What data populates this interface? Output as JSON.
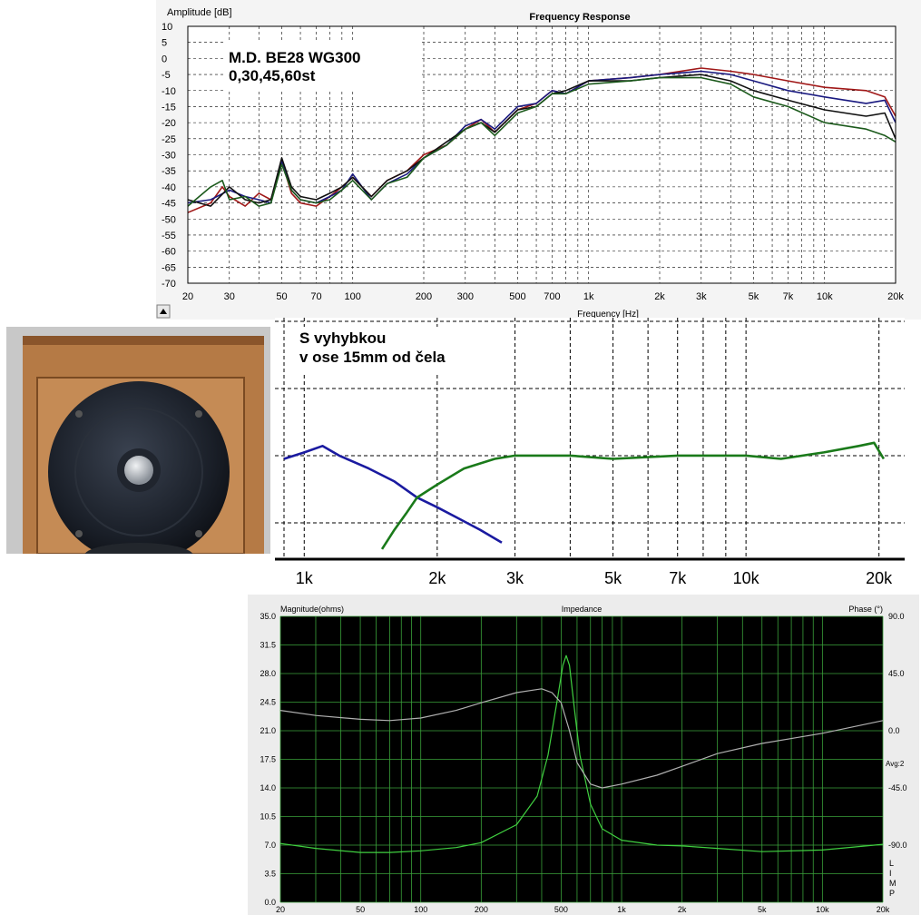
{
  "chart_data": [
    {
      "type": "line",
      "title": "Frequency Response",
      "xlabel": "Frequency [Hz]",
      "ylabel": "Amplitude [dB]",
      "xscale": "log",
      "xlim": [
        20,
        20000
      ],
      "ylim": [
        -70,
        10
      ],
      "yticks": [
        "10",
        "5",
        "0",
        "-5",
        "-10",
        "-15",
        "-20",
        "-25",
        "-30",
        "-35",
        "-40",
        "-45",
        "-50",
        "-55",
        "-60",
        "-65",
        "-70"
      ],
      "xticks": [
        {
          "v": 20,
          "label": "20"
        },
        {
          "v": 30,
          "label": "30"
        },
        {
          "v": 50,
          "label": "50"
        },
        {
          "v": 70,
          "label": "70"
        },
        {
          "v": 100,
          "label": "100"
        },
        {
          "v": 200,
          "label": "200"
        },
        {
          "v": 300,
          "label": "300"
        },
        {
          "v": 500,
          "label": "500"
        },
        {
          "v": 700,
          "label": "700"
        },
        {
          "v": 1000,
          "label": "1k"
        },
        {
          "v": 2000,
          "label": "2k"
        },
        {
          "v": 3000,
          "label": "3k"
        },
        {
          "v": 5000,
          "label": "5k"
        },
        {
          "v": 7000,
          "label": "7k"
        },
        {
          "v": 10000,
          "label": "10k"
        },
        {
          "v": 20000,
          "label": "20k"
        }
      ],
      "grid": true,
      "annotation": [
        "M.D. BE28 WG300",
        "0,30,45,60st"
      ],
      "series": [
        {
          "color": "#a01818",
          "points": [
            [
              20,
              -48
            ],
            [
              25,
              -45
            ],
            [
              28,
              -40
            ],
            [
              30,
              -43
            ],
            [
              35,
              -46
            ],
            [
              40,
              -42
            ],
            [
              45,
              -44
            ],
            [
              50,
              -32
            ],
            [
              55,
              -42
            ],
            [
              60,
              -45
            ],
            [
              70,
              -46
            ],
            [
              80,
              -43
            ],
            [
              90,
              -40
            ],
            [
              100,
              -37
            ],
            [
              120,
              -43
            ],
            [
              140,
              -38
            ],
            [
              170,
              -35
            ],
            [
              200,
              -30
            ],
            [
              250,
              -27
            ],
            [
              300,
              -22
            ],
            [
              350,
              -19
            ],
            [
              400,
              -23
            ],
            [
              500,
              -16
            ],
            [
              600,
              -14
            ],
            [
              700,
              -10
            ],
            [
              800,
              -11
            ],
            [
              1000,
              -7
            ],
            [
              1500,
              -6
            ],
            [
              2000,
              -5
            ],
            [
              3000,
              -3
            ],
            [
              4000,
              -4
            ],
            [
              5000,
              -5
            ],
            [
              7000,
              -7
            ],
            [
              10000,
              -9
            ],
            [
              15000,
              -10
            ],
            [
              18000,
              -12
            ],
            [
              20000,
              -18
            ]
          ]
        },
        {
          "color": "#1a1a80",
          "points": [
            [
              20,
              -45
            ],
            [
              25,
              -44
            ],
            [
              30,
              -41
            ],
            [
              35,
              -43
            ],
            [
              40,
              -44
            ],
            [
              45,
              -45
            ],
            [
              50,
              -32
            ],
            [
              55,
              -41
            ],
            [
              60,
              -44
            ],
            [
              70,
              -45
            ],
            [
              80,
              -43
            ],
            [
              90,
              -41
            ],
            [
              100,
              -36
            ],
            [
              120,
              -44
            ],
            [
              140,
              -39
            ],
            [
              170,
              -36
            ],
            [
              200,
              -31
            ],
            [
              250,
              -27
            ],
            [
              300,
              -21
            ],
            [
              350,
              -19
            ],
            [
              400,
              -22
            ],
            [
              500,
              -15
            ],
            [
              600,
              -14
            ],
            [
              700,
              -10
            ],
            [
              800,
              -11
            ],
            [
              1000,
              -7
            ],
            [
              1500,
              -6
            ],
            [
              2000,
              -5
            ],
            [
              3000,
              -4
            ],
            [
              4000,
              -5
            ],
            [
              5000,
              -7
            ],
            [
              7000,
              -10
            ],
            [
              10000,
              -12
            ],
            [
              15000,
              -14
            ],
            [
              18000,
              -13
            ],
            [
              20000,
              -20
            ]
          ]
        },
        {
          "color": "#101010",
          "points": [
            [
              20,
              -44
            ],
            [
              25,
              -46
            ],
            [
              30,
              -40
            ],
            [
              35,
              -44
            ],
            [
              40,
              -45
            ],
            [
              45,
              -44
            ],
            [
              50,
              -31
            ],
            [
              55,
              -40
            ],
            [
              60,
              -43
            ],
            [
              70,
              -44
            ],
            [
              80,
              -42
            ],
            [
              90,
              -40
            ],
            [
              100,
              -37
            ],
            [
              120,
              -43
            ],
            [
              140,
              -38
            ],
            [
              170,
              -35
            ],
            [
              200,
              -31
            ],
            [
              250,
              -26
            ],
            [
              300,
              -22
            ],
            [
              350,
              -20
            ],
            [
              400,
              -23
            ],
            [
              500,
              -16
            ],
            [
              600,
              -15
            ],
            [
              700,
              -11
            ],
            [
              800,
              -10
            ],
            [
              1000,
              -7
            ],
            [
              1500,
              -7
            ],
            [
              2000,
              -6
            ],
            [
              3000,
              -5
            ],
            [
              4000,
              -7
            ],
            [
              5000,
              -10
            ],
            [
              7000,
              -13
            ],
            [
              10000,
              -16
            ],
            [
              15000,
              -18
            ],
            [
              18000,
              -17
            ],
            [
              20000,
              -25
            ]
          ]
        },
        {
          "color": "#1c5a1c",
          "points": [
            [
              20,
              -46
            ],
            [
              25,
              -40
            ],
            [
              28,
              -38
            ],
            [
              30,
              -44
            ],
            [
              35,
              -43
            ],
            [
              40,
              -46
            ],
            [
              45,
              -45
            ],
            [
              50,
              -33
            ],
            [
              55,
              -41
            ],
            [
              60,
              -44
            ],
            [
              70,
              -45
            ],
            [
              80,
              -44
            ],
            [
              90,
              -41
            ],
            [
              100,
              -38
            ],
            [
              120,
              -44
            ],
            [
              140,
              -39
            ],
            [
              170,
              -37
            ],
            [
              200,
              -31
            ],
            [
              250,
              -27
            ],
            [
              300,
              -22
            ],
            [
              350,
              -20
            ],
            [
              400,
              -24
            ],
            [
              500,
              -17
            ],
            [
              600,
              -15
            ],
            [
              700,
              -11
            ],
            [
              800,
              -11
            ],
            [
              1000,
              -8
            ],
            [
              1500,
              -7
            ],
            [
              2000,
              -6
            ],
            [
              3000,
              -6
            ],
            [
              4000,
              -8
            ],
            [
              5000,
              -12
            ],
            [
              7000,
              -15
            ],
            [
              10000,
              -20
            ],
            [
              15000,
              -22
            ],
            [
              18000,
              -24
            ],
            [
              20000,
              -26
            ]
          ]
        }
      ]
    },
    {
      "type": "line",
      "xscale": "log",
      "xlim": [
        900,
        21000
      ],
      "xticks": [
        {
          "v": 1000,
          "label": "1k"
        },
        {
          "v": 2000,
          "label": "2k"
        },
        {
          "v": 3000,
          "label": "3k"
        },
        {
          "v": 5000,
          "label": "5k"
        },
        {
          "v": 7000,
          "label": "7k"
        },
        {
          "v": 10000,
          "label": "10k"
        },
        {
          "v": 20000,
          "label": "20k"
        }
      ],
      "grid": true,
      "annotation": [
        "S vyhybkou",
        "v ose 15mm od čela"
      ],
      "series": [
        {
          "color": "#1a1aa0",
          "points": [
            [
              900,
              -5
            ],
            [
              1000,
              -3
            ],
            [
              1100,
              -1
            ],
            [
              1200,
              -4
            ],
            [
              1400,
              -8
            ],
            [
              1600,
              -12
            ],
            [
              1800,
              -17
            ],
            [
              2000,
              -20
            ],
            [
              2200,
              -23
            ],
            [
              2500,
              -27
            ],
            [
              2800,
              -31
            ]
          ]
        },
        {
          "color": "#1a7a1a",
          "points": [
            [
              1500,
              -33
            ],
            [
              1600,
              -27
            ],
            [
              1700,
              -22
            ],
            [
              1800,
              -17
            ],
            [
              2000,
              -13
            ],
            [
              2300,
              -8
            ],
            [
              2700,
              -5
            ],
            [
              3000,
              -4
            ],
            [
              4000,
              -4
            ],
            [
              5000,
              -5
            ],
            [
              7000,
              -4
            ],
            [
              10000,
              -4
            ],
            [
              12000,
              -5
            ],
            [
              15000,
              -3
            ],
            [
              18000,
              -1
            ],
            [
              19500,
              0
            ],
            [
              20500,
              -5
            ]
          ]
        }
      ]
    },
    {
      "type": "line",
      "title": "Impedance",
      "xscale": "log",
      "xlim": [
        20,
        20000
      ],
      "ylabel": "Magnitude(ohms)",
      "y2label": "Phase (°)",
      "ylim": [
        0,
        35
      ],
      "y2lim": [
        -135,
        90
      ],
      "yticks": [
        "35.0",
        "31.5",
        "28.0",
        "24.5",
        "21.0",
        "17.5",
        "14.0",
        "10.5",
        "7.0",
        "3.5",
        "0.0"
      ],
      "y2ticks": [
        "90.0",
        "45.0",
        "0.0",
        "-45.0",
        "-90.0"
      ],
      "xticks": [
        {
          "v": 20,
          "label": "20"
        },
        {
          "v": 50,
          "label": "50"
        },
        {
          "v": 100,
          "label": "100"
        },
        {
          "v": 200,
          "label": "200"
        },
        {
          "v": 500,
          "label": "500"
        },
        {
          "v": 1000,
          "label": "1k"
        },
        {
          "v": 2000,
          "label": "2k"
        },
        {
          "v": 5000,
          "label": "5k"
        },
        {
          "v": 10000,
          "label": "10k"
        },
        {
          "v": 20000,
          "label": "20k"
        }
      ],
      "grid": true,
      "side_labels": [
        "Avg:2",
        "LIMP"
      ],
      "series": [
        {
          "name": "magnitude",
          "color": "#40d040",
          "points": [
            [
              20,
              7.2
            ],
            [
              30,
              6.6
            ],
            [
              50,
              6.1
            ],
            [
              70,
              6.1
            ],
            [
              100,
              6.3
            ],
            [
              150,
              6.7
            ],
            [
              200,
              7.3
            ],
            [
              300,
              9.5
            ],
            [
              380,
              13
            ],
            [
              430,
              18
            ],
            [
              480,
              25
            ],
            [
              510,
              29
            ],
            [
              530,
              30.2
            ],
            [
              550,
              29
            ],
            [
              580,
              24
            ],
            [
              620,
              18
            ],
            [
              700,
              12
            ],
            [
              800,
              9
            ],
            [
              1000,
              7.6
            ],
            [
              1500,
              7
            ],
            [
              2000,
              6.9
            ],
            [
              3000,
              6.6
            ],
            [
              5000,
              6.2
            ],
            [
              10000,
              6.4
            ],
            [
              20000,
              7.1
            ]
          ]
        },
        {
          "name": "phase",
          "color": "#b0b0b0",
          "points": [
            [
              20,
              16
            ],
            [
              30,
              12
            ],
            [
              50,
              9
            ],
            [
              70,
              8
            ],
            [
              100,
              10
            ],
            [
              150,
              16
            ],
            [
              200,
              22
            ],
            [
              300,
              30
            ],
            [
              400,
              33
            ],
            [
              450,
              30
            ],
            [
              500,
              22
            ],
            [
              550,
              0
            ],
            [
              600,
              -25
            ],
            [
              700,
              -42
            ],
            [
              800,
              -45
            ],
            [
              1000,
              -42
            ],
            [
              1500,
              -35
            ],
            [
              2000,
              -28
            ],
            [
              3000,
              -18
            ],
            [
              5000,
              -10
            ],
            [
              10000,
              -2
            ],
            [
              20000,
              8
            ]
          ]
        }
      ]
    }
  ],
  "photo": {
    "subject": "speaker-with-waveguide-and-dome-tweeter",
    "wood_color": "#b57a45"
  }
}
